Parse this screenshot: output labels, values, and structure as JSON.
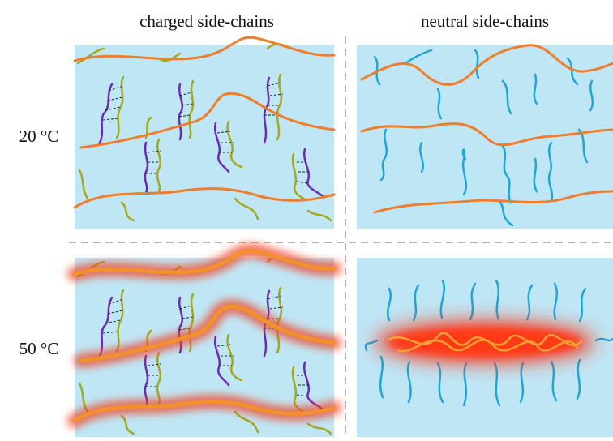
{
  "columns": [
    "charged side-chains",
    "neutral side-chains"
  ],
  "rows": [
    "20 °C",
    "50 °C"
  ]
}
